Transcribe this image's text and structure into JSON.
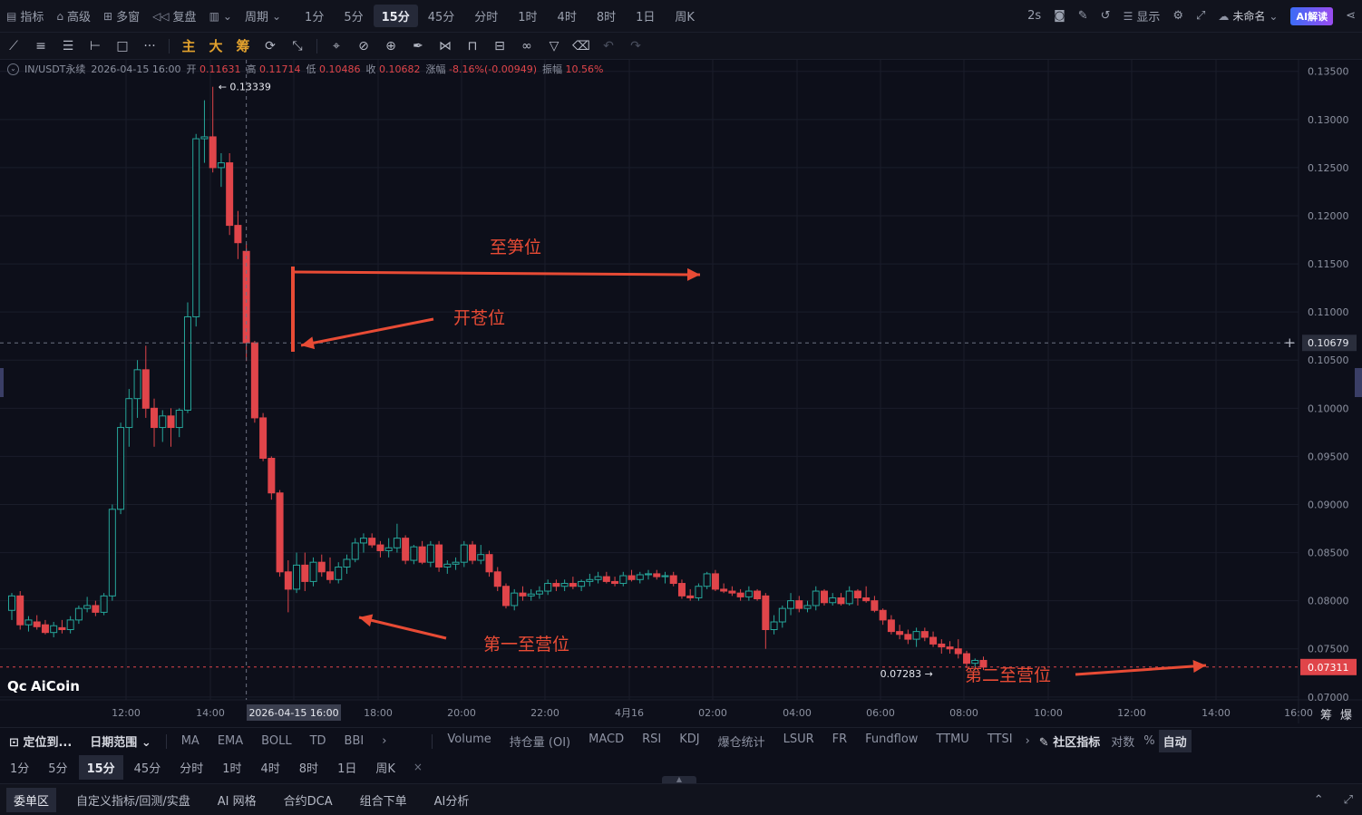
{
  "topbar": {
    "indicator": "指标",
    "advanced": "高级",
    "multiwin": "多窗",
    "replay": "复盘",
    "period": "周期",
    "timeframes": [
      "1分",
      "5分",
      "15分",
      "45分",
      "分时",
      "1时",
      "4时",
      "8时",
      "1日",
      "周K"
    ],
    "active_timeframe": "15分",
    "refresh": "2s",
    "display": "显示",
    "unnamed": "未命名",
    "ai_read": "AI解读"
  },
  "drawbar": {
    "main": "主",
    "big": "大",
    "chip": "筹"
  },
  "ohlc": {
    "symbol": "IN/USDT永续",
    "time": "2026-04-15 16:00",
    "open_label": "开",
    "open": "0.11631",
    "high_label": "高",
    "high": "0.11714",
    "low_label": "低",
    "low": "0.10486",
    "close_label": "收",
    "close": "0.10682",
    "change_label": "涨幅",
    "change": "-8.16%(-0.00949)",
    "amp_label": "振幅",
    "amp": "10.56%"
  },
  "chart_data": {
    "type": "candlestick",
    "price_axis": [
      "0.13500",
      "0.13000",
      "0.12500",
      "0.12000",
      "0.11500",
      "0.11000",
      "0.10500",
      "0.10000",
      "0.09500",
      "0.09000",
      "0.08500",
      "0.08000",
      "0.07500",
      "0.07000"
    ],
    "ylim": [
      0.0697,
      0.1362
    ],
    "time_axis": [
      "12:00",
      "14:00",
      "2026-04-15 16:00",
      "18:00",
      "20:00",
      "22:00",
      "4月16",
      "02:00",
      "04:00",
      "06:00",
      "08:00",
      "10:00",
      "12:00",
      "14:00",
      "16:00"
    ],
    "crosshair_price": "0.10679",
    "last_price": "0.07311",
    "max_label": "0.13339",
    "min_label": "0.07283",
    "colors": {
      "up": "#26a69a",
      "down": "#e0454a"
    },
    "candles": [
      [
        0.079,
        0.0808,
        0.078,
        0.0805
      ],
      [
        0.0805,
        0.081,
        0.077,
        0.0775
      ],
      [
        0.0775,
        0.0784,
        0.0768,
        0.078
      ],
      [
        0.0778,
        0.0785,
        0.077,
        0.0773
      ],
      [
        0.0775,
        0.078,
        0.0765,
        0.0767
      ],
      [
        0.0767,
        0.0778,
        0.0762,
        0.0774
      ],
      [
        0.0772,
        0.078,
        0.0766,
        0.077
      ],
      [
        0.077,
        0.0784,
        0.0766,
        0.078
      ],
      [
        0.078,
        0.0795,
        0.0776,
        0.0792
      ],
      [
        0.0792,
        0.0804,
        0.0788,
        0.0795
      ],
      [
        0.0795,
        0.08,
        0.0784,
        0.0788
      ],
      [
        0.0788,
        0.0808,
        0.0785,
        0.0805
      ],
      [
        0.0805,
        0.09,
        0.08,
        0.0895
      ],
      [
        0.0895,
        0.0985,
        0.089,
        0.098
      ],
      [
        0.098,
        0.102,
        0.096,
        0.101
      ],
      [
        0.101,
        0.105,
        0.099,
        0.104
      ],
      [
        0.104,
        0.1065,
        0.099,
        0.1
      ],
      [
        0.1,
        0.101,
        0.096,
        0.098
      ],
      [
        0.098,
        0.0998,
        0.0965,
        0.0992
      ],
      [
        0.0992,
        0.1,
        0.096,
        0.098
      ],
      [
        0.098,
        0.1,
        0.097,
        0.0998
      ],
      [
        0.0998,
        0.111,
        0.0995,
        0.1095
      ],
      [
        0.1095,
        0.1285,
        0.1085,
        0.128
      ],
      [
        0.128,
        0.132,
        0.1255,
        0.1282
      ],
      [
        0.1282,
        0.1334,
        0.1245,
        0.125
      ],
      [
        0.125,
        0.1265,
        0.123,
        0.1255
      ],
      [
        0.1255,
        0.1265,
        0.118,
        0.119
      ],
      [
        0.119,
        0.1205,
        0.1155,
        0.1172
      ],
      [
        0.1163,
        0.1171,
        0.1049,
        0.1068
      ],
      [
        0.1068,
        0.107,
        0.0985,
        0.099
      ],
      [
        0.099,
        0.0995,
        0.0945,
        0.0948
      ],
      [
        0.0948,
        0.095,
        0.0905,
        0.0912
      ],
      [
        0.0912,
        0.0915,
        0.0825,
        0.083
      ],
      [
        0.083,
        0.0842,
        0.0788,
        0.0812
      ],
      [
        0.0812,
        0.085,
        0.0808,
        0.0837
      ],
      [
        0.0837,
        0.085,
        0.081,
        0.082
      ],
      [
        0.082,
        0.0845,
        0.0815,
        0.084
      ],
      [
        0.084,
        0.0848,
        0.0825,
        0.083
      ],
      [
        0.083,
        0.0845,
        0.0818,
        0.0822
      ],
      [
        0.0822,
        0.084,
        0.0818,
        0.0835
      ],
      [
        0.0835,
        0.0848,
        0.0828,
        0.0843
      ],
      [
        0.0843,
        0.0865,
        0.084,
        0.086
      ],
      [
        0.086,
        0.087,
        0.085,
        0.0865
      ],
      [
        0.0865,
        0.087,
        0.0855,
        0.0858
      ],
      [
        0.0858,
        0.0862,
        0.0845,
        0.0852
      ],
      [
        0.0852,
        0.0865,
        0.0845,
        0.0855
      ],
      [
        0.0855,
        0.088,
        0.085,
        0.0865
      ],
      [
        0.0865,
        0.0868,
        0.0838,
        0.0842
      ],
      [
        0.0842,
        0.0858,
        0.0838,
        0.0856
      ],
      [
        0.0856,
        0.0862,
        0.0838,
        0.084
      ],
      [
        0.084,
        0.0862,
        0.0835,
        0.0858
      ],
      [
        0.0858,
        0.0862,
        0.083,
        0.0835
      ],
      [
        0.0835,
        0.0842,
        0.0828,
        0.0838
      ],
      [
        0.0838,
        0.0845,
        0.0832,
        0.084
      ],
      [
        0.084,
        0.0862,
        0.0835,
        0.0858
      ],
      [
        0.0858,
        0.0862,
        0.0838,
        0.0842
      ],
      [
        0.0842,
        0.0858,
        0.0838,
        0.0848
      ],
      [
        0.0848,
        0.0852,
        0.0825,
        0.083
      ],
      [
        0.083,
        0.0835,
        0.081,
        0.0815
      ],
      [
        0.0815,
        0.0818,
        0.0792,
        0.0795
      ],
      [
        0.0795,
        0.0812,
        0.079,
        0.0808
      ],
      [
        0.0808,
        0.0815,
        0.08,
        0.0805
      ],
      [
        0.0805,
        0.0812,
        0.08,
        0.0807
      ],
      [
        0.0807,
        0.0815,
        0.0802,
        0.081
      ],
      [
        0.081,
        0.0822,
        0.0806,
        0.0818
      ],
      [
        0.0818,
        0.0822,
        0.081,
        0.0815
      ],
      [
        0.0815,
        0.0822,
        0.081,
        0.0818
      ],
      [
        0.0818,
        0.0825,
        0.0812,
        0.0815
      ],
      [
        0.0815,
        0.0822,
        0.081,
        0.082
      ],
      [
        0.082,
        0.0828,
        0.0815,
        0.0822
      ],
      [
        0.0822,
        0.083,
        0.0818,
        0.0825
      ],
      [
        0.0825,
        0.083,
        0.0818,
        0.082
      ],
      [
        0.082,
        0.0825,
        0.0815,
        0.0818
      ],
      [
        0.0818,
        0.083,
        0.0815,
        0.0826
      ],
      [
        0.0826,
        0.0832,
        0.082,
        0.0822
      ],
      [
        0.0822,
        0.083,
        0.0818,
        0.0827
      ],
      [
        0.0827,
        0.0832,
        0.0822,
        0.0828
      ],
      [
        0.0828,
        0.0832,
        0.0822,
        0.0825
      ],
      [
        0.0825,
        0.083,
        0.0818,
        0.0826
      ],
      [
        0.0826,
        0.083,
        0.0815,
        0.0818
      ],
      [
        0.0818,
        0.0822,
        0.0802,
        0.0805
      ],
      [
        0.0805,
        0.0812,
        0.08,
        0.0803
      ],
      [
        0.0803,
        0.0818,
        0.08,
        0.0815
      ],
      [
        0.0815,
        0.083,
        0.0812,
        0.0828
      ],
      [
        0.0828,
        0.0832,
        0.081,
        0.0812
      ],
      [
        0.0812,
        0.0818,
        0.0808,
        0.081
      ],
      [
        0.081,
        0.0815,
        0.0805,
        0.0808
      ],
      [
        0.0808,
        0.0812,
        0.08,
        0.0804
      ],
      [
        0.0804,
        0.0815,
        0.08,
        0.081
      ],
      [
        0.081,
        0.0812,
        0.08,
        0.0802
      ],
      [
        0.0805,
        0.0808,
        0.075,
        0.077
      ],
      [
        0.077,
        0.0785,
        0.0765,
        0.0778
      ],
      [
        0.0778,
        0.0795,
        0.0772,
        0.0792
      ],
      [
        0.0792,
        0.0808,
        0.0785,
        0.08
      ],
      [
        0.08,
        0.0805,
        0.0788,
        0.0792
      ],
      [
        0.0792,
        0.08,
        0.0788,
        0.0795
      ],
      [
        0.0795,
        0.0815,
        0.079,
        0.081
      ],
      [
        0.081,
        0.0812,
        0.0795,
        0.0798
      ],
      [
        0.0798,
        0.0808,
        0.0795,
        0.0803
      ],
      [
        0.0803,
        0.0808,
        0.0795,
        0.0797
      ],
      [
        0.0797,
        0.0815,
        0.0795,
        0.081
      ],
      [
        0.081,
        0.0812,
        0.0795,
        0.0803
      ],
      [
        0.0803,
        0.0815,
        0.0798,
        0.08
      ],
      [
        0.08,
        0.0805,
        0.0788,
        0.079
      ],
      [
        0.079,
        0.0792,
        0.0775,
        0.078
      ],
      [
        0.078,
        0.0785,
        0.0765,
        0.0768
      ],
      [
        0.0768,
        0.0775,
        0.076,
        0.0765
      ],
      [
        0.0765,
        0.077,
        0.0755,
        0.076
      ],
      [
        0.076,
        0.0772,
        0.0752,
        0.0768
      ],
      [
        0.0768,
        0.0772,
        0.0758,
        0.0762
      ],
      [
        0.0762,
        0.0768,
        0.0752,
        0.0755
      ],
      [
        0.0755,
        0.076,
        0.0745,
        0.0752
      ],
      [
        0.0752,
        0.0758,
        0.0745,
        0.075
      ],
      [
        0.075,
        0.076,
        0.074,
        0.0745
      ],
      [
        0.0745,
        0.0748,
        0.073,
        0.0735
      ],
      [
        0.0735,
        0.074,
        0.0728,
        0.0738
      ],
      [
        0.0738,
        0.0742,
        0.0728,
        0.0731
      ]
    ]
  },
  "annotations": {
    "label1": "至笋位",
    "label2": "开苍位",
    "label3": "第一至营位",
    "label4": "第二至营位"
  },
  "logo": "AiCoin",
  "indicators": {
    "locate": "定位到...",
    "daterange": "日期范围",
    "main": [
      "MA",
      "EMA",
      "BOLL",
      "TD",
      "BBI"
    ],
    "sub": [
      "Volume",
      "持仓量 (OI)",
      "MACD",
      "RSI",
      "KDJ",
      "爆仓统计",
      "LSUR",
      "FR",
      "Fundflow",
      "TTMU",
      "TTSI"
    ],
    "community": "社区指标",
    "log": "对数",
    "pct": "%",
    "auto": "自动",
    "chip_small": "筹",
    "burst_small": "爆"
  },
  "tfbar": {
    "items": [
      "1分",
      "5分",
      "15分",
      "45分",
      "分时",
      "1时",
      "4时",
      "8时",
      "1日",
      "周K"
    ],
    "active": "15分"
  },
  "bottom": {
    "items": [
      "委单区",
      "自定义指标/回测/实盘",
      "AI 网格",
      "合约DCA",
      "组合下单",
      "AI分析"
    ],
    "active": "委单区"
  }
}
